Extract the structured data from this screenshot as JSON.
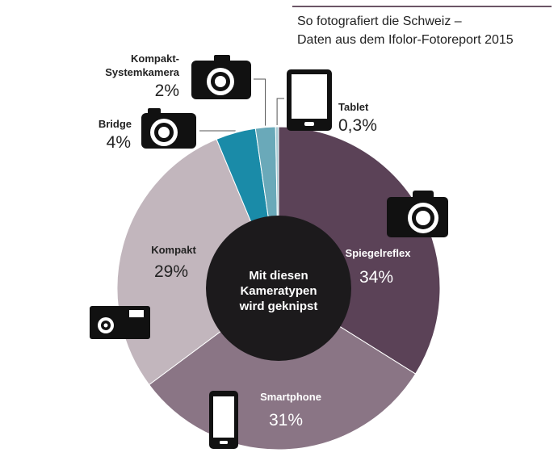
{
  "header": {
    "line1": "So fotografiert die Schweiz –",
    "line2": "Daten aus dem Ifolor-Fotoreport 2015"
  },
  "center_label": [
    "Mit diesen",
    "Kameratypen",
    "wird geknipst"
  ],
  "colors": {
    "spiegelreflex": "#5b4257",
    "smartphone": "#8a7585",
    "kompakt": "#c2b6bd",
    "bridge": "#1a8ba8",
    "kompakt_system": "#6aa9b9",
    "tablet": "#a9cdd6",
    "center": "#1c1a1c",
    "rule": "#6b5566",
    "icon": "#111111"
  },
  "chart_data": {
    "type": "pie",
    "title": "So fotografiert die Schweiz – Daten aus dem Ifolor-Fotoreport 2015",
    "center_text": "Mit diesen Kameratypen wird geknipst",
    "slices": [
      {
        "name": "Spiegelreflex",
        "value": 34,
        "label": "34%",
        "icon": "dslr-camera-icon"
      },
      {
        "name": "Smartphone",
        "value": 31,
        "label": "31%",
        "icon": "smartphone-icon"
      },
      {
        "name": "Kompakt",
        "value": 29,
        "label": "29%",
        "icon": "compact-camera-icon"
      },
      {
        "name": "Bridge",
        "value": 4,
        "label": "4%",
        "icon": "bridge-camera-icon"
      },
      {
        "name": "Kompakt-Systemkamera",
        "name_lines": [
          "Kompakt-",
          "Systemkamera"
        ],
        "value": 2,
        "label": "2%",
        "icon": "system-camera-icon"
      },
      {
        "name": "Tablet",
        "value": 0.3,
        "label": "0,3%",
        "icon": "tablet-icon"
      }
    ]
  }
}
